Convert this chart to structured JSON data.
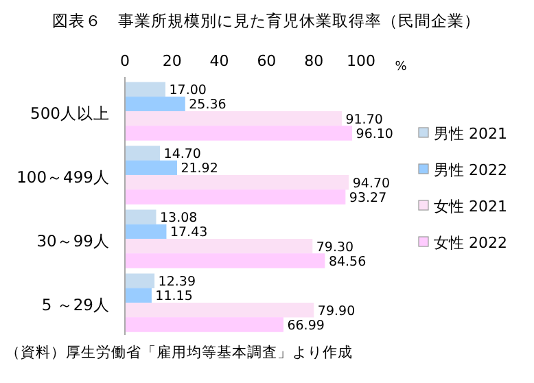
{
  "chart_data": {
    "type": "bar",
    "orientation": "horizontal",
    "title": "図表６　事業所規模別に見た育児休業取得率（民間企業）",
    "xlabel": "%",
    "categories": [
      "500人以上",
      "100～499人",
      "30～99人",
      "5 ～29人"
    ],
    "series": [
      {
        "name": "男性 2021",
        "color": "#c5dcf0",
        "values": [
          17.0,
          14.7,
          13.08,
          12.39
        ]
      },
      {
        "name": "男性 2022",
        "color": "#99ccff",
        "values": [
          25.36,
          21.92,
          17.43,
          11.15
        ]
      },
      {
        "name": "女性 2021",
        "color": "#fbe0f5",
        "values": [
          91.7,
          94.7,
          79.3,
          79.9
        ]
      },
      {
        "name": "女性 2022",
        "color": "#ffccff",
        "values": [
          96.1,
          93.27,
          84.56,
          66.99
        ]
      }
    ],
    "value_labels": [
      [
        "17.00",
        "14.70",
        "13.08",
        "12.39"
      ],
      [
        "25.36",
        "21.92",
        "17.43",
        "11.15"
      ],
      [
        "91.70",
        "94.70",
        "79.30",
        "79.90"
      ],
      [
        "96.10",
        "93.27",
        "84.56",
        "66.99"
      ]
    ],
    "xlim": [
      0,
      100
    ],
    "xticks": [
      0,
      20,
      40,
      60,
      80,
      100
    ],
    "legend": "right",
    "annotations": [
      "（資料）厚生労働省「雇用均等基本調査」より作成"
    ]
  }
}
